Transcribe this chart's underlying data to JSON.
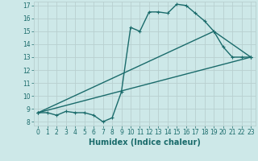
{
  "xlabel": "Humidex (Indice chaleur)",
  "background_color": "#cde8e8",
  "grid_color": "#b8d0d0",
  "line_color": "#1a6b6b",
  "xlim": [
    -0.5,
    23.5
  ],
  "ylim": [
    7.7,
    17.3
  ],
  "yticks": [
    8,
    9,
    10,
    11,
    12,
    13,
    14,
    15,
    16,
    17
  ],
  "xticks": [
    0,
    1,
    2,
    3,
    4,
    5,
    6,
    7,
    8,
    9,
    10,
    11,
    12,
    13,
    14,
    15,
    16,
    17,
    18,
    19,
    20,
    21,
    22,
    23
  ],
  "line1_x": [
    0,
    1,
    2,
    3,
    4,
    5,
    6,
    7,
    8,
    9,
    10,
    11,
    12,
    13,
    14,
    15,
    16,
    17,
    18,
    19,
    20,
    21,
    22,
    23
  ],
  "line1_y": [
    8.7,
    8.7,
    8.5,
    8.8,
    8.7,
    8.7,
    8.5,
    8.0,
    8.3,
    10.3,
    15.3,
    15.0,
    16.5,
    16.5,
    16.4,
    17.1,
    17.0,
    16.4,
    15.8,
    15.0,
    13.8,
    13.0,
    13.0,
    13.0
  ],
  "line2_x": [
    0,
    23
  ],
  "line2_y": [
    8.7,
    13.0
  ],
  "line3_x": [
    0,
    19,
    23
  ],
  "line3_y": [
    8.7,
    15.0,
    13.0
  ],
  "marker_size": 3,
  "linewidth": 1.0,
  "xlabel_fontsize": 7,
  "tick_fontsize": 5.5
}
